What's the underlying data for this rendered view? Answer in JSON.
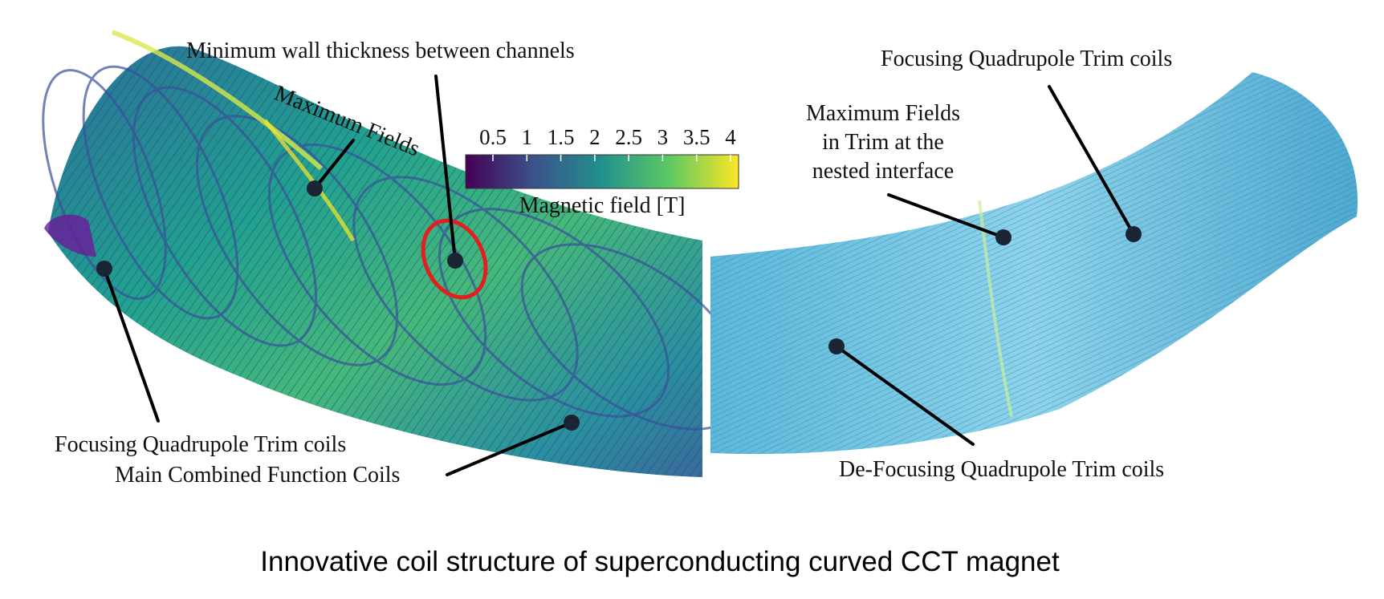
{
  "caption": "Innovative coil structure of superconducting curved CCT magnet",
  "annotations": {
    "min_wall": "Minimum wall thickness between channels",
    "max_fields": "Maximum Fields",
    "focusing_trim_left": "Focusing Quadrupole Trim coils",
    "main_coils": "Main Combined Function Coils",
    "focusing_trim_right": "Focusing Quadrupole Trim coils",
    "max_fields_trim": [
      "Maximum Fields",
      "in Trim at the",
      "nested interface"
    ],
    "defocusing_trim": "De-Focusing Quadrupole Trim coils"
  },
  "colorbar": {
    "label": "Magnetic field [T]",
    "ticks": [
      "0.5",
      "1",
      "1.5",
      "2",
      "2.5",
      "3",
      "3.5",
      "4"
    ],
    "colormap": [
      "#440154",
      "#3b528b",
      "#21918c",
      "#5ec962",
      "#fde725"
    ]
  },
  "colors": {
    "highlight_ring": "#e02020",
    "leader": "#000000",
    "coil_light": "#7fd0e6",
    "coil_mid": "#2a9db5"
  },
  "icons": [
    "coil-render-left",
    "coil-render-right",
    "ellipse-highlight"
  ]
}
